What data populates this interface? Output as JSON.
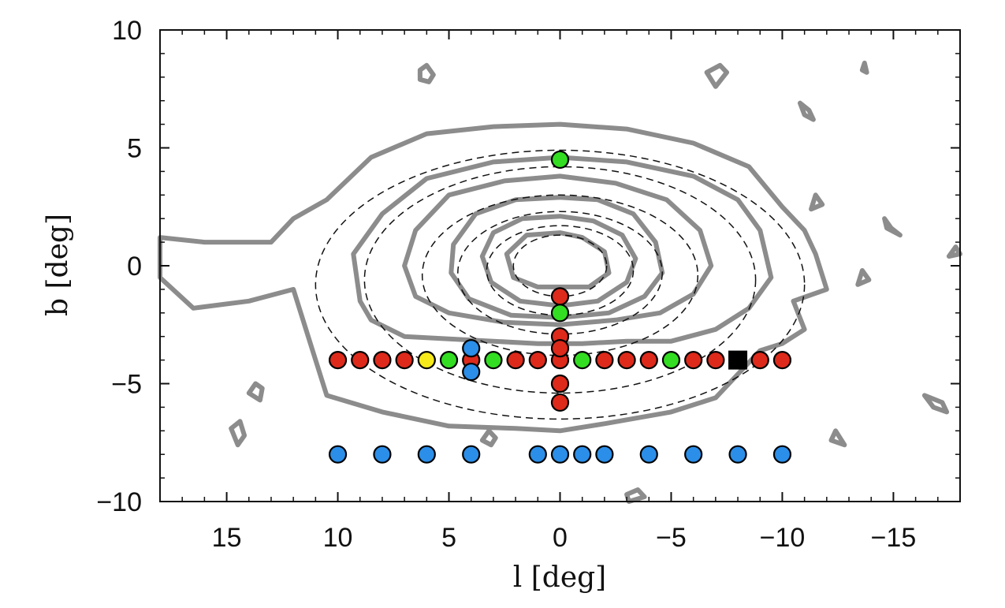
{
  "chart_data": {
    "type": "scatter",
    "title": "",
    "xlabel": "l [deg]",
    "ylabel": "b [deg]",
    "xlim": [
      18,
      -18
    ],
    "ylim": [
      -10,
      10
    ],
    "x_reversed": true,
    "xticks": [
      15,
      10,
      5,
      0,
      -5,
      -10,
      -15
    ],
    "xtick_labels": [
      "15",
      "10",
      "5",
      "0",
      "−5",
      "−10",
      "−15"
    ],
    "yticks": [
      10,
      5,
      0,
      -5,
      -10
    ],
    "ytick_labels": [
      "10",
      "5",
      "0",
      "−5",
      "−10"
    ],
    "grid": false,
    "colors": {
      "red": "#dd2a1b",
      "green": "#33dd22",
      "blue": "#2b8ee8",
      "yellow": "#f6ea1a",
      "contour": "#8c8c8c",
      "dashed": "#111111",
      "square": "#000000"
    },
    "series": [
      {
        "color": "red",
        "marker": "circle",
        "points": [
          [
            10,
            -4
          ],
          [
            9,
            -4
          ],
          [
            8,
            -4
          ],
          [
            7,
            -4
          ],
          [
            4,
            -4
          ],
          [
            2,
            -4
          ],
          [
            1,
            -4
          ],
          [
            0,
            -4
          ],
          [
            -2,
            -4
          ],
          [
            -3,
            -4
          ],
          [
            -4,
            -4
          ],
          [
            -6,
            -4
          ],
          [
            -7,
            -4
          ],
          [
            -9,
            -4
          ],
          [
            -10,
            -4
          ],
          [
            0,
            -1.3
          ],
          [
            0,
            -3
          ],
          [
            0,
            -3.5
          ],
          [
            0,
            -5
          ],
          [
            0,
            -5.8
          ]
        ]
      },
      {
        "color": "green",
        "marker": "circle",
        "points": [
          [
            0,
            4.5
          ],
          [
            0,
            -2
          ],
          [
            5,
            -4
          ],
          [
            3,
            -4
          ],
          [
            -1,
            -4
          ],
          [
            -5,
            -4
          ]
        ]
      },
      {
        "color": "yellow",
        "marker": "circle",
        "points": [
          [
            6,
            -4
          ]
        ]
      },
      {
        "color": "blue",
        "marker": "circle",
        "points": [
          [
            4,
            -3.5
          ],
          [
            4,
            -4.5
          ],
          [
            10,
            -8
          ],
          [
            8,
            -8
          ],
          [
            6,
            -8
          ],
          [
            4,
            -8
          ],
          [
            1,
            -8
          ],
          [
            0,
            -8
          ],
          [
            -1,
            -8
          ],
          [
            -2,
            -8
          ],
          [
            -4,
            -8
          ],
          [
            -6,
            -8
          ],
          [
            -8,
            -8
          ],
          [
            -10,
            -8
          ]
        ]
      },
      {
        "color": "square",
        "marker": "square",
        "points": [
          [
            -8,
            -4
          ]
        ]
      }
    ],
    "dashed_ellipses": [
      {
        "center": [
          0,
          -0.8
        ],
        "semi_axes": [
          11,
          5.7
        ]
      },
      {
        "center": [
          0,
          -0.6
        ],
        "semi_axes": [
          8.8,
          4.8
        ]
      },
      {
        "center": [
          0,
          -0.4
        ],
        "semi_axes": [
          6.2,
          3.4
        ]
      },
      {
        "center": [
          0,
          -0.3
        ],
        "semi_axes": [
          4.6,
          2.6
        ]
      },
      {
        "center": [
          0,
          -0.2
        ],
        "semi_axes": [
          3.3,
          1.9
        ]
      },
      {
        "center": [
          0,
          0
        ],
        "semi_axes": [
          2.1,
          1.3
        ]
      }
    ],
    "contours": [
      [
        [
          0,
          6
        ],
        [
          3,
          5.9
        ],
        [
          6,
          5.6
        ],
        [
          8.5,
          4.6
        ],
        [
          10.5,
          2.8
        ],
        [
          12,
          2
        ],
        [
          13,
          1
        ],
        [
          16,
          1
        ],
        [
          18,
          1.2
        ],
        [
          18,
          -0.5
        ],
        [
          16.5,
          -1.8
        ],
        [
          14,
          -1.5
        ],
        [
          12,
          -1
        ],
        [
          11.5,
          -2.5
        ],
        [
          11,
          -4
        ],
        [
          10.5,
          -5.5
        ],
        [
          8,
          -6.2
        ],
        [
          5,
          -6.8
        ],
        [
          2,
          -6.9
        ],
        [
          0,
          -7
        ],
        [
          -2,
          -6.7
        ],
        [
          -5,
          -6.2
        ],
        [
          -7,
          -5.6
        ],
        [
          -8,
          -4.6
        ],
        [
          -9,
          -3.6
        ],
        [
          -10,
          -3.3
        ],
        [
          -11,
          -2.7
        ],
        [
          -10.5,
          -1.5
        ],
        [
          -12,
          -1
        ],
        [
          -11.5,
          0.5
        ],
        [
          -11,
          1.5
        ],
        [
          -10,
          2.5
        ],
        [
          -8.5,
          4.2
        ],
        [
          -6,
          5.2
        ],
        [
          -3,
          5.8
        ],
        [
          0,
          6
        ]
      ],
      [
        [
          0,
          4.6
        ],
        [
          3,
          4.4
        ],
        [
          6,
          3.7
        ],
        [
          8,
          2.2
        ],
        [
          9.3,
          0.5
        ],
        [
          9,
          -1.5
        ],
        [
          8.5,
          -2.3
        ],
        [
          7,
          -3
        ],
        [
          5,
          -3.1
        ],
        [
          3,
          -3.2
        ],
        [
          1,
          -3.3
        ],
        [
          -1,
          -3.3
        ],
        [
          -3,
          -3.2
        ],
        [
          -5,
          -3.2
        ],
        [
          -7,
          -2.7
        ],
        [
          -8.5,
          -1.8
        ],
        [
          -9.5,
          -0.5
        ],
        [
          -9,
          1.5
        ],
        [
          -8,
          2.8
        ],
        [
          -6,
          3.8
        ],
        [
          -3,
          4.4
        ],
        [
          0,
          4.6
        ]
      ],
      [
        [
          0,
          3.8
        ],
        [
          2.5,
          3.6
        ],
        [
          5,
          3
        ],
        [
          6.5,
          1.5
        ],
        [
          7,
          0
        ],
        [
          6.5,
          -1.3
        ],
        [
          5,
          -2
        ],
        [
          2.5,
          -2.4
        ],
        [
          0,
          -2.5
        ],
        [
          -2.5,
          -2.3
        ],
        [
          -4.5,
          -2
        ],
        [
          -6,
          -1.2
        ],
        [
          -6.8,
          0
        ],
        [
          -6.3,
          1.5
        ],
        [
          -4.8,
          2.8
        ],
        [
          -2.5,
          3.5
        ],
        [
          0,
          3.8
        ]
      ],
      [
        [
          0,
          2.9
        ],
        [
          2,
          2.8
        ],
        [
          3.8,
          2.2
        ],
        [
          4.8,
          0.9
        ],
        [
          4.9,
          -0.3
        ],
        [
          4.1,
          -1.4
        ],
        [
          2.2,
          -2.1
        ],
        [
          0,
          -2.2
        ],
        [
          -2.2,
          -2
        ],
        [
          -3.8,
          -1.3
        ],
        [
          -4.6,
          -0.3
        ],
        [
          -4.3,
          1
        ],
        [
          -3.3,
          2.2
        ],
        [
          -1.7,
          2.8
        ],
        [
          0,
          2.9
        ]
      ],
      [
        [
          0,
          2.1
        ],
        [
          1.7,
          2
        ],
        [
          3,
          1.4
        ],
        [
          3.5,
          0.4
        ],
        [
          3.1,
          -0.7
        ],
        [
          1.8,
          -1.5
        ],
        [
          0,
          -1.7
        ],
        [
          -1.7,
          -1.5
        ],
        [
          -3,
          -0.7
        ],
        [
          -3.4,
          0.3
        ],
        [
          -2.8,
          1.3
        ],
        [
          -1.5,
          1.9
        ],
        [
          0,
          2.1
        ]
      ],
      [
        [
          0,
          1.4
        ],
        [
          1.5,
          1.3
        ],
        [
          2.4,
          0.5
        ],
        [
          2.1,
          -0.5
        ],
        [
          1,
          -0.9
        ],
        [
          0,
          -0.9
        ],
        [
          -1.3,
          -0.9
        ],
        [
          -2.2,
          -0.3
        ],
        [
          -2,
          0.6
        ],
        [
          -1,
          1.2
        ],
        [
          0,
          1.4
        ]
      ],
      [
        [
          6,
          8.5
        ],
        [
          6.3,
          8.3
        ],
        [
          6.3,
          7.9
        ],
        [
          5.9,
          7.8
        ],
        [
          5.7,
          8.1
        ],
        [
          6,
          8.5
        ]
      ],
      [
        [
          -6.6,
          8.2
        ],
        [
          -7.2,
          8.5
        ],
        [
          -7.5,
          8.2
        ],
        [
          -7,
          7.6
        ],
        [
          -6.6,
          8.2
        ]
      ],
      [
        [
          -10.8,
          6.9
        ],
        [
          -11.2,
          6.6
        ],
        [
          -11.4,
          6.2
        ],
        [
          -11,
          6.4
        ],
        [
          -10.8,
          6.9
        ]
      ],
      [
        [
          -13.6,
          8.3
        ],
        [
          -13.7,
          8.6
        ],
        [
          -13.8,
          8.2
        ],
        [
          -13.6,
          8.3
        ]
      ],
      [
        [
          -11.5,
          3
        ],
        [
          -11.8,
          2.6
        ],
        [
          -11.3,
          2.4
        ],
        [
          -11.5,
          3
        ]
      ],
      [
        [
          -14.6,
          2
        ],
        [
          -14.9,
          1.6
        ],
        [
          -15.3,
          1.3
        ],
        [
          -14.7,
          1.6
        ],
        [
          -14.6,
          2
        ]
      ],
      [
        [
          -13.6,
          -0.2
        ],
        [
          -13.9,
          -0.6
        ],
        [
          -13.4,
          -0.8
        ],
        [
          -13.6,
          -0.2
        ]
      ],
      [
        [
          -17.5,
          0.4
        ],
        [
          -17.8,
          0.8
        ],
        [
          -18,
          0.5
        ],
        [
          -17.5,
          0.4
        ]
      ],
      [
        [
          -16.4,
          -5.5
        ],
        [
          -17.2,
          -5.8
        ],
        [
          -17.4,
          -6.2
        ],
        [
          -16.8,
          -6
        ],
        [
          -16.4,
          -5.5
        ]
      ],
      [
        [
          -12.4,
          -7
        ],
        [
          -12.8,
          -7.6
        ],
        [
          -12.2,
          -7.4
        ],
        [
          -12.4,
          -7
        ]
      ],
      [
        [
          14.4,
          -6.6
        ],
        [
          14.8,
          -6.9
        ],
        [
          14.5,
          -7.6
        ],
        [
          14.2,
          -7.2
        ],
        [
          14.4,
          -6.6
        ]
      ],
      [
        [
          13.7,
          -5
        ],
        [
          14,
          -5.4
        ],
        [
          13.5,
          -5.7
        ],
        [
          13.4,
          -5.2
        ],
        [
          13.7,
          -5
        ]
      ],
      [
        [
          -3.5,
          -9.5
        ],
        [
          -3.8,
          -9.8
        ],
        [
          -3.1,
          -10
        ],
        [
          -3,
          -9.7
        ],
        [
          -3.5,
          -9.5
        ]
      ],
      [
        [
          3.2,
          -7
        ],
        [
          3.5,
          -7.4
        ],
        [
          3.1,
          -7.6
        ],
        [
          2.9,
          -7.3
        ],
        [
          3.2,
          -7
        ]
      ]
    ]
  }
}
